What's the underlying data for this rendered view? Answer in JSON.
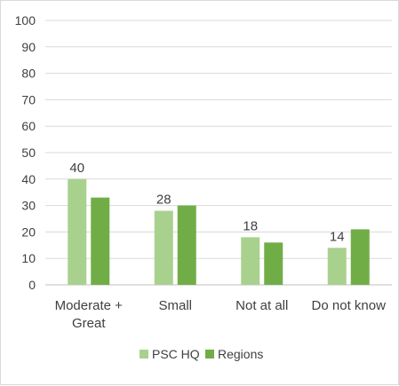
{
  "chart_data": {
    "type": "bar",
    "categories": [
      [
        "Moderate +",
        "Great"
      ],
      [
        "Small"
      ],
      [
        "Not at all"
      ],
      [
        "Do not know"
      ]
    ],
    "series": [
      {
        "name": "PSC HQ",
        "values": [
          40,
          28,
          18,
          14
        ],
        "color": "#a9d18e",
        "data_labels": true
      },
      {
        "name": "Regions",
        "values": [
          33,
          30,
          16,
          21
        ],
        "color": "#70ad47",
        "data_labels": false
      }
    ],
    "ylim": [
      0,
      100
    ],
    "yticks": [
      0,
      10,
      20,
      30,
      40,
      50,
      60,
      70,
      80,
      90,
      100
    ],
    "grid": true,
    "legend": "bottom",
    "title": "",
    "xlabel": "",
    "ylabel": ""
  }
}
